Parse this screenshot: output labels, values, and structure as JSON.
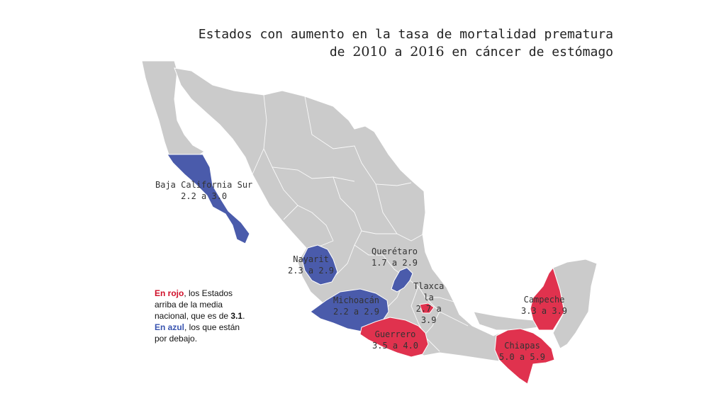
{
  "title": {
    "line1": "Estados con aumento en la tasa de mortalidad prematura",
    "line2_pre": "de ",
    "year_from": "2010",
    "line2_mid": " a ",
    "year_to": "2016",
    "line2_post": " en cáncer de estómago"
  },
  "colors": {
    "above": "#e0324e",
    "below": "#4a5bab",
    "other": "#cbcbcb"
  },
  "states": {
    "bcs": {
      "name": "Baja California Sur",
      "range": "2.2 a 3.0"
    },
    "nayarit": {
      "name": "Nayarit",
      "range": "2.3 a 2.9"
    },
    "queretaro": {
      "name": "Querétaro",
      "range": "1.7 a 2.9"
    },
    "michoacan": {
      "name": "Michoacán",
      "range": "2.2 a 2.9"
    },
    "tlaxcala": {
      "name_a": "Tlaxca",
      "name_b": "la",
      "range_a": "2.7 a",
      "range_b": "3.9"
    },
    "guerrero": {
      "name": "Guerrero",
      "range": "3.5 a 4.0"
    },
    "campeche": {
      "name": "Campeche",
      "range": "3.3 a 3.9"
    },
    "chiapas": {
      "name": "Chiapas",
      "range": "5.0 a 5.9"
    }
  },
  "legend": {
    "red_label": "En rojo",
    "red_text": ", los Estados arriba de la media nacional, que es de ",
    "national_mean": "3.1",
    "red_end": ".",
    "blue_label": "En azul",
    "blue_text": ", los que están por debajo."
  }
}
